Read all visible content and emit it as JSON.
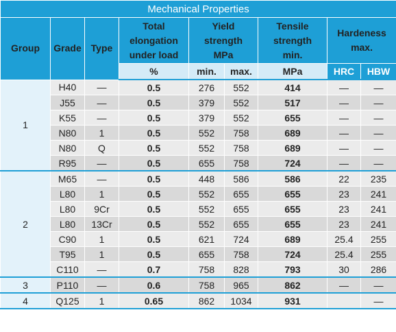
{
  "title": "Mechanical Properties",
  "headers": {
    "group": "Group",
    "grade": "Grade",
    "type": "Type",
    "elongation": [
      "Total",
      "elongation",
      "under load"
    ],
    "yield": [
      "Yield",
      "strength",
      "MPa"
    ],
    "tensile": [
      "Tensile",
      "strength",
      "min."
    ],
    "hardness": [
      "Hardeness",
      "max."
    ]
  },
  "subheaders": {
    "elongation": "%",
    "yield_min": "min.",
    "yield_max": "max.",
    "tensile": "MPa",
    "hrc": "HRC",
    "hbw": "HBW"
  },
  "groups": [
    {
      "label": "1",
      "rows": [
        {
          "grade": "H40",
          "type": "—",
          "elongation": "0.5",
          "ymin": "276",
          "ymax": "552",
          "tensile": "414",
          "hrc": "—",
          "hbw": "—"
        },
        {
          "grade": "J55",
          "type": "—",
          "elongation": "0.5",
          "ymin": "379",
          "ymax": "552",
          "tensile": "517",
          "hrc": "—",
          "hbw": "—"
        },
        {
          "grade": "K55",
          "type": "—",
          "elongation": "0.5",
          "ymin": "379",
          "ymax": "552",
          "tensile": "655",
          "hrc": "—",
          "hbw": "—"
        },
        {
          "grade": "N80",
          "type": "1",
          "elongation": "0.5",
          "ymin": "552",
          "ymax": "758",
          "tensile": "689",
          "hrc": "—",
          "hbw": "—"
        },
        {
          "grade": "N80",
          "type": "Q",
          "elongation": "0.5",
          "ymin": "552",
          "ymax": "758",
          "tensile": "689",
          "hrc": "—",
          "hbw": "—"
        },
        {
          "grade": "R95",
          "type": "—",
          "elongation": "0.5",
          "ymin": "655",
          "ymax": "758",
          "tensile": "724",
          "hrc": "—",
          "hbw": "—"
        }
      ]
    },
    {
      "label": "2",
      "rows": [
        {
          "grade": "M65",
          "type": "—",
          "elongation": "0.5",
          "ymin": "448",
          "ymax": "586",
          "tensile": "586",
          "hrc": "22",
          "hbw": "235"
        },
        {
          "grade": "L80",
          "type": "1",
          "elongation": "0.5",
          "ymin": "552",
          "ymax": "655",
          "tensile": "655",
          "hrc": "23",
          "hbw": "241"
        },
        {
          "grade": "L80",
          "type": "9Cr",
          "elongation": "0.5",
          "ymin": "552",
          "ymax": "655",
          "tensile": "655",
          "hrc": "23",
          "hbw": "241"
        },
        {
          "grade": "L80",
          "type": "13Cr",
          "elongation": "0.5",
          "ymin": "552",
          "ymax": "655",
          "tensile": "655",
          "hrc": "23",
          "hbw": "241"
        },
        {
          "grade": "C90",
          "type": "1",
          "elongation": "0.5",
          "ymin": "621",
          "ymax": "724",
          "tensile": "689",
          "hrc": "25.4",
          "hbw": "255"
        },
        {
          "grade": "T95",
          "type": "1",
          "elongation": "0.5",
          "ymin": "655",
          "ymax": "758",
          "tensile": "724",
          "hrc": "25.4",
          "hbw": "255"
        },
        {
          "grade": "C110",
          "type": "—",
          "elongation": "0.7",
          "ymin": "758",
          "ymax": "828",
          "tensile": "793",
          "hrc": "30",
          "hbw": "286"
        }
      ]
    },
    {
      "label": "3",
      "rows": [
        {
          "grade": "P110",
          "type": "—",
          "elongation": "0.6",
          "ymin": "758",
          "ymax": "965",
          "tensile": "862",
          "hrc": "—",
          "hbw": "—"
        }
      ]
    },
    {
      "label": "4",
      "rows": [
        {
          "grade": "Q125",
          "type": "1",
          "elongation": "0.65",
          "ymin": "862",
          "ymax": "1034",
          "tensile": "931",
          "hrc": "",
          "hbw": "—"
        }
      ]
    }
  ]
}
